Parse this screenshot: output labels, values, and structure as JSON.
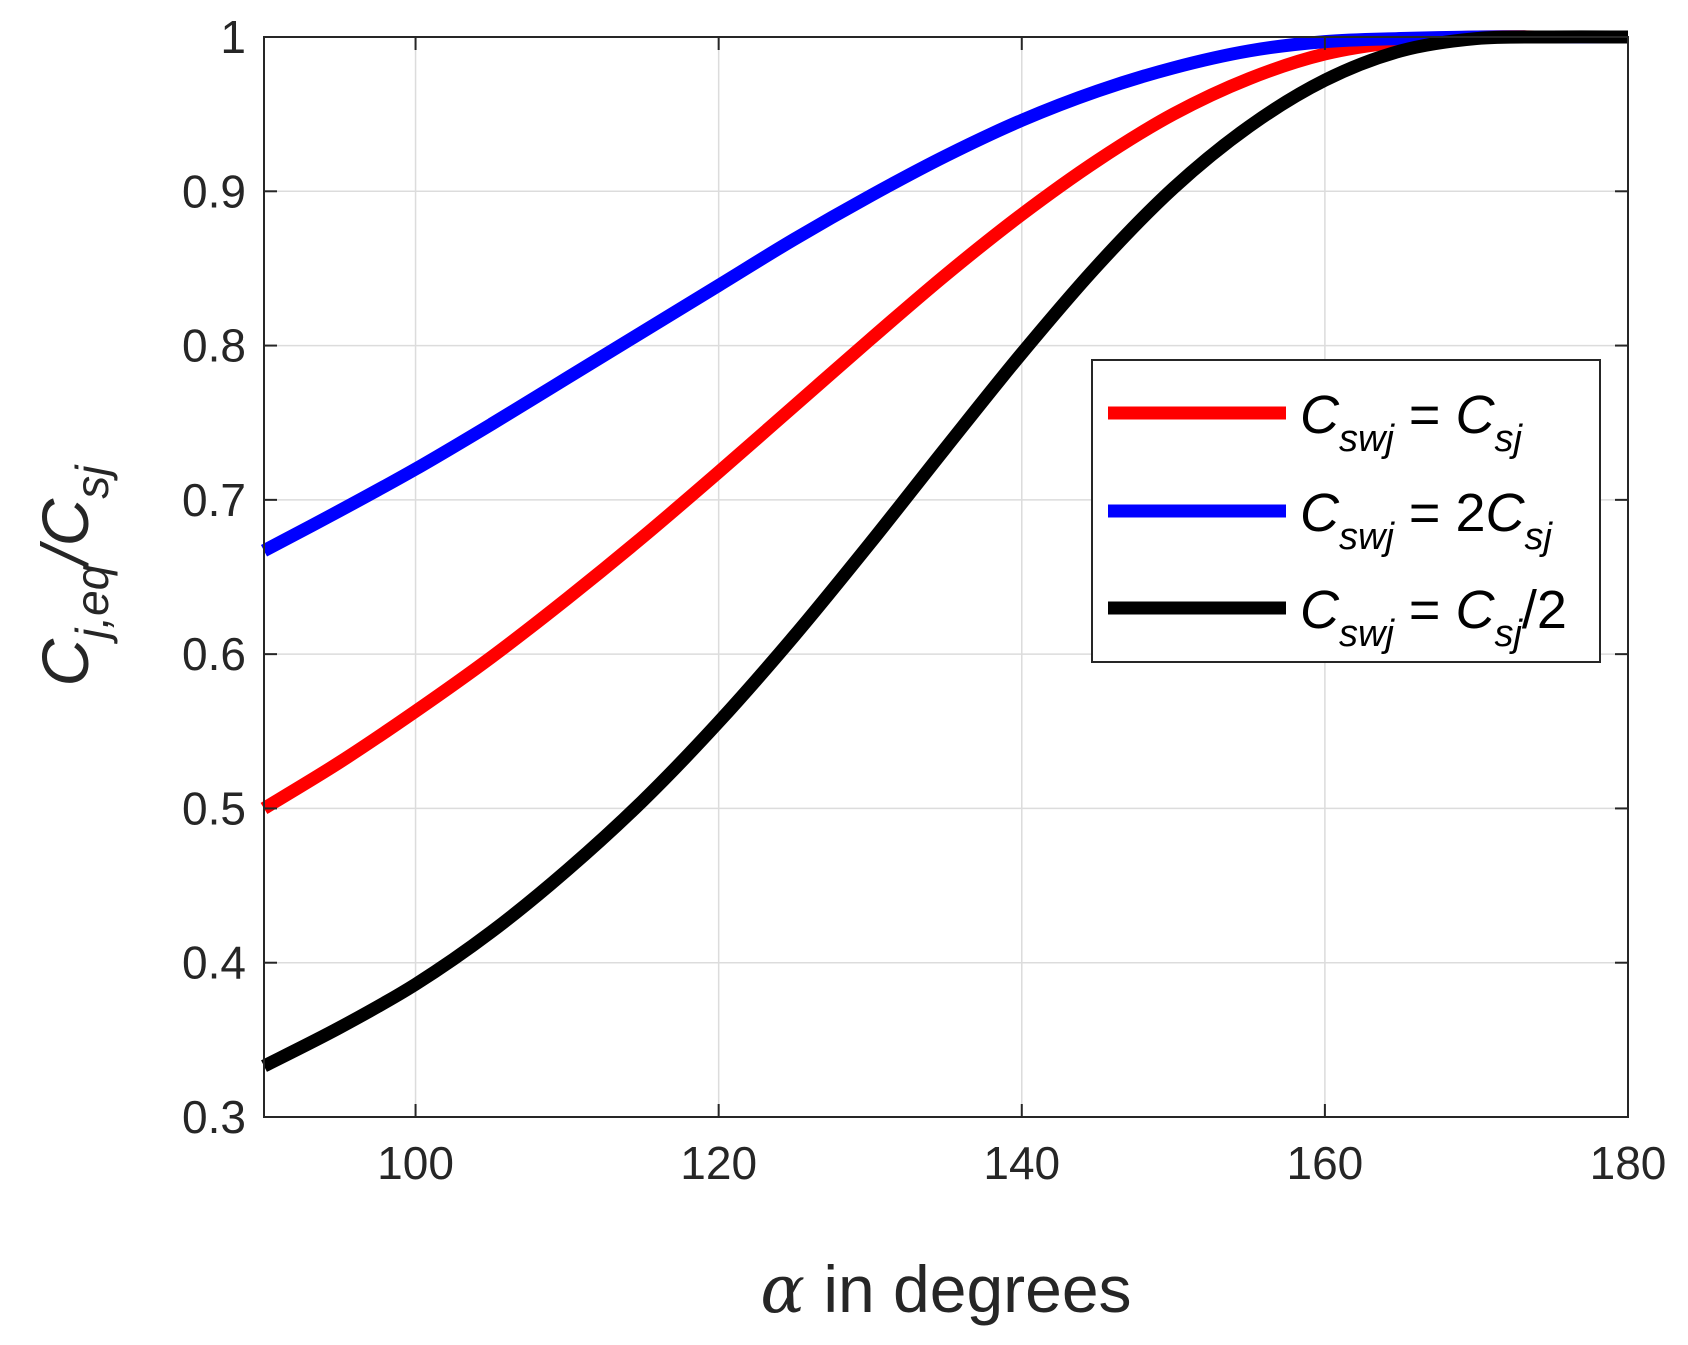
{
  "chart_data": {
    "type": "line",
    "title": "",
    "xlabel": {
      "symbol": "α",
      "text": " in degrees"
    },
    "ylabel": {
      "main": "C",
      "sub": "j,eq",
      "slash": "/",
      "main2": "C",
      "sub2": "sj"
    },
    "xlim": [
      90,
      180
    ],
    "ylim": [
      0.3,
      1.0
    ],
    "xticks": [
      100,
      120,
      140,
      160,
      180
    ],
    "yticks": [
      0.3,
      0.4,
      0.5,
      0.6,
      0.7,
      0.8,
      0.9,
      1.0
    ],
    "xtick_labels": [
      "100",
      "120",
      "140",
      "160",
      "180"
    ],
    "ytick_labels": [
      "0.3",
      "0.4",
      "0.5",
      "0.6",
      "0.7",
      "0.8",
      "0.9",
      "1"
    ],
    "grid": true,
    "legend_position": "center-right",
    "x": [
      90,
      95,
      100,
      105,
      110,
      115,
      120,
      125,
      130,
      135,
      140,
      145,
      150,
      155,
      160,
      165,
      170,
      175,
      180
    ],
    "series": [
      {
        "name": "Cswj = Csj",
        "label": {
          "m1": "C",
          "s1": "swj",
          "eq": " = ",
          "coef": "",
          "m2": "C",
          "s2": "sj",
          "suffix": ""
        },
        "color": "#ff0000",
        "values": [
          0.5,
          0.53,
          0.563,
          0.598,
          0.636,
          0.676,
          0.718,
          0.761,
          0.804,
          0.846,
          0.885,
          0.92,
          0.95,
          0.973,
          0.989,
          0.997,
          1.0,
          1.0,
          1.0
        ]
      },
      {
        "name": "Cswj = 2Csj",
        "label": {
          "m1": "C",
          "s1": "swj",
          "eq": " = ",
          "coef": "2",
          "m2": "C",
          "s2": "sj",
          "suffix": ""
        },
        "color": "#0000ff",
        "values": [
          0.667,
          0.693,
          0.72,
          0.749,
          0.779,
          0.809,
          0.839,
          0.869,
          0.897,
          0.923,
          0.946,
          0.965,
          0.98,
          0.991,
          0.997,
          0.999,
          1.0,
          1.0,
          1.0
        ]
      },
      {
        "name": "Cswj = Csj/2",
        "label": {
          "m1": "C",
          "s1": "swj",
          "eq": " = ",
          "coef": "",
          "m2": "C",
          "s2": "sj",
          "suffix": "/2"
        },
        "color": "#000000",
        "values": [
          0.333,
          0.358,
          0.386,
          0.42,
          0.46,
          0.505,
          0.556,
          0.612,
          0.672,
          0.734,
          0.795,
          0.852,
          0.902,
          0.942,
          0.972,
          0.991,
          0.999,
          1.0,
          1.0
        ]
      }
    ]
  }
}
